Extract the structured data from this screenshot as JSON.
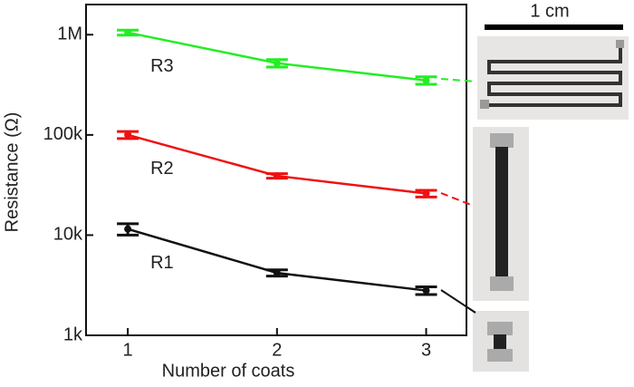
{
  "chart_data": {
    "type": "line",
    "x_label": "Number of coats",
    "y_label": "Resistance (Ω)",
    "x": [
      1,
      2,
      3
    ],
    "log_y": true,
    "xlim": [
      0.72,
      3.27
    ],
    "xticks": [
      1,
      2,
      3
    ],
    "ylim": [
      1000,
      2000000
    ],
    "yticks": [
      {
        "value": 1000,
        "label": "1k"
      },
      {
        "value": 10000,
        "label": "10k"
      },
      {
        "value": 100000,
        "label": "100k"
      },
      {
        "value": 1000000,
        "label": "1M"
      }
    ],
    "series": [
      {
        "name": "R3",
        "color": "#22ee22",
        "values": [
          1050000,
          520000,
          350000
        ],
        "errors": [
          60000,
          45000,
          30000
        ]
      },
      {
        "name": "R2",
        "color": "#ee1111",
        "values": [
          100000,
          39000,
          26000
        ],
        "errors": [
          8000,
          2000,
          2000
        ]
      },
      {
        "name": "R1",
        "color": "#111111",
        "values": [
          11500,
          4200,
          2800
        ],
        "errors": [
          1500,
          300,
          250
        ]
      }
    ],
    "scale_bar": "1 cm"
  }
}
